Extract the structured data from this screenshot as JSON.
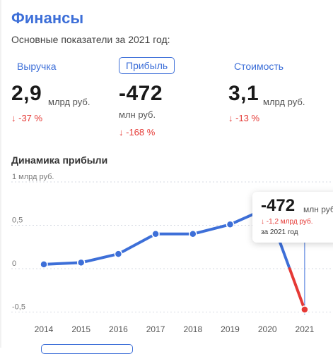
{
  "header": {
    "title": "Финансы",
    "subtitle": "Основные показатели за 2021 год:"
  },
  "metrics": [
    {
      "label": "Выручка",
      "value": "2,9",
      "unit": "млрд руб.",
      "change": "↓ -37 %",
      "active": false
    },
    {
      "label": "Прибыль",
      "value": "-472",
      "unit": "млн руб.",
      "change": "↓ -168 %",
      "active": true
    },
    {
      "label": "Стоимость",
      "value": "3,1",
      "unit": "млрд руб.",
      "change": "↓ -13 %",
      "active": false
    }
  ],
  "chart_title": "Динамика прибыли",
  "tooltip": {
    "value": "-472",
    "unit": "млн руб.",
    "change": "↓ -1,2 млрд руб.",
    "period": "за 2021 год"
  },
  "colors": {
    "accent": "#3d6fd8",
    "negative": "#e53935",
    "line": "#3d6fd8",
    "negative_segment": "#e53935"
  },
  "chart_data": {
    "type": "line",
    "x": [
      "2014",
      "2015",
      "2016",
      "2017",
      "2018",
      "2019",
      "2020",
      "2021"
    ],
    "series": [
      {
        "values": [
          0.05,
          0.07,
          0.17,
          0.4,
          0.4,
          0.51,
          0.7,
          -0.472
        ]
      }
    ],
    "y_ticks": [
      {
        "value": 1,
        "label": "1 млрд руб."
      },
      {
        "value": 0.5,
        "label": "0,5"
      },
      {
        "value": 0,
        "label": "0"
      },
      {
        "value": -0.5,
        "label": "-0,5"
      }
    ],
    "ylim": [
      -0.6,
      1.0
    ],
    "grid": true,
    "highlight_x": "2021"
  }
}
